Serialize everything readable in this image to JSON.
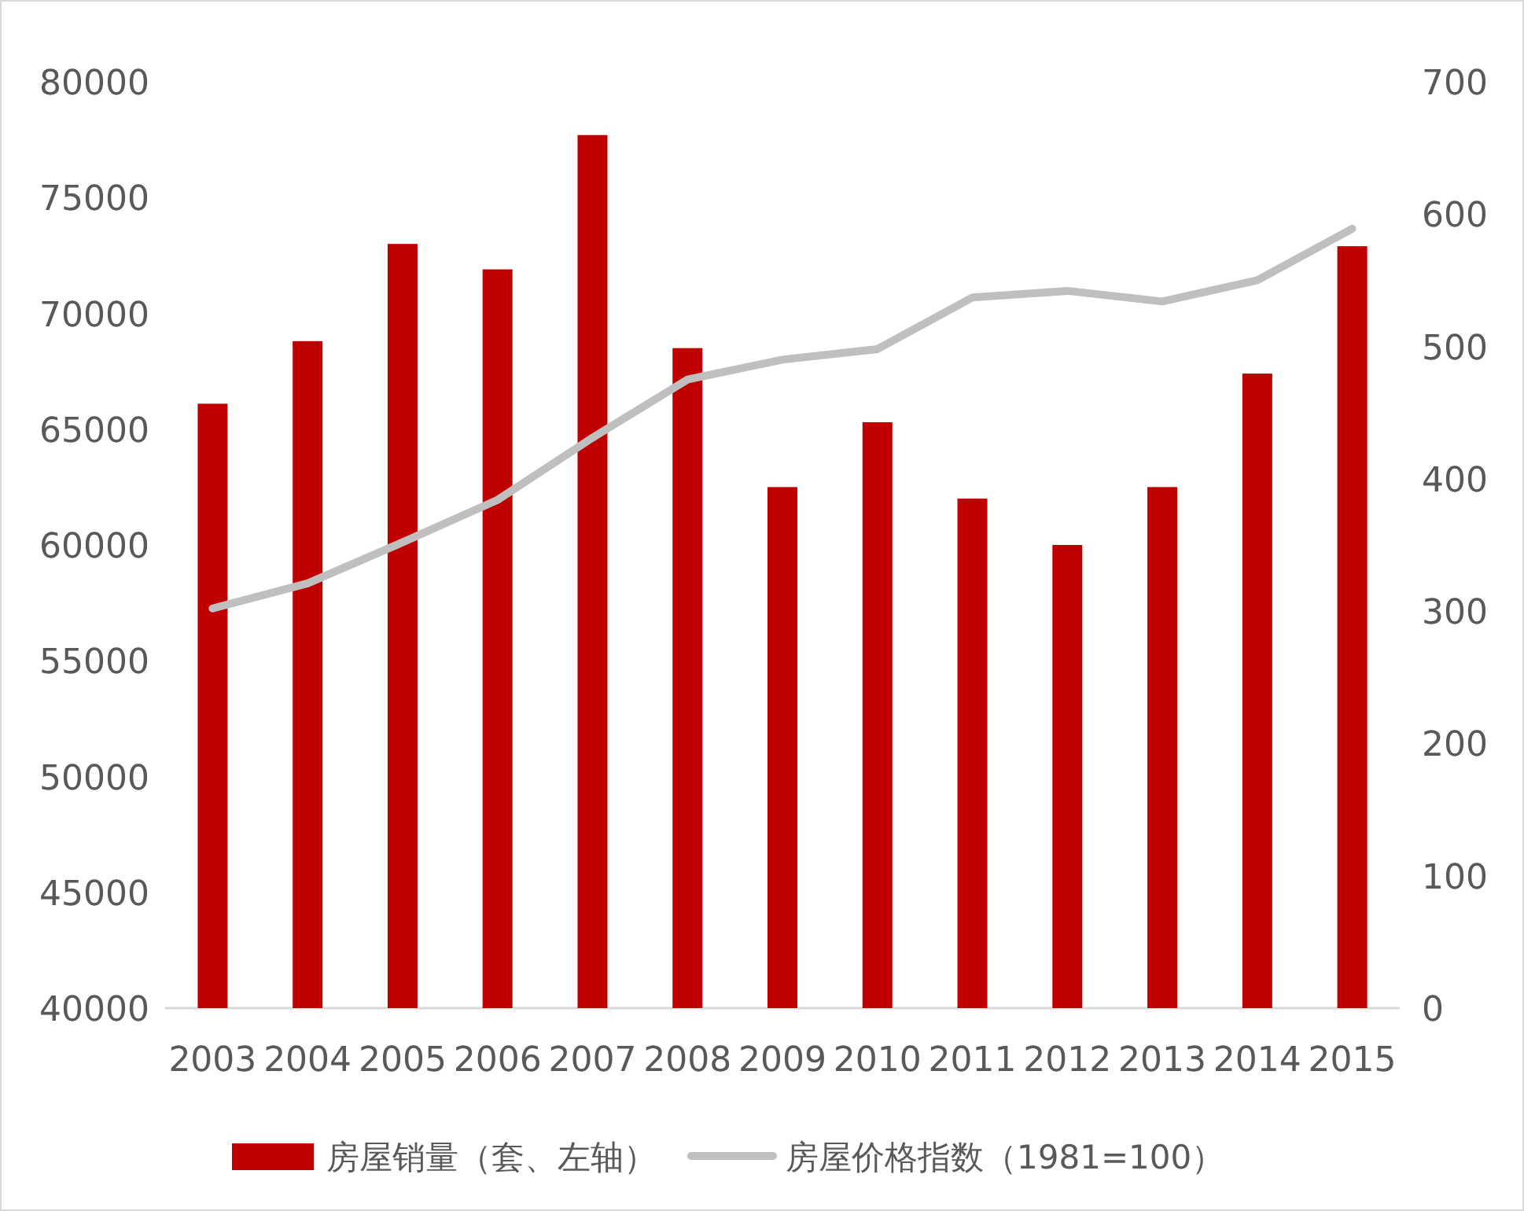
{
  "chart_data": {
    "type": "bar",
    "categories": [
      "2003",
      "2004",
      "2005",
      "2006",
      "2007",
      "2008",
      "2009",
      "2010",
      "2011",
      "2012",
      "2013",
      "2014",
      "2015"
    ],
    "series": [
      {
        "name": "房屋销量（套、左轴）",
        "color": "#c00000",
        "values": [
          66100,
          68800,
          73000,
          71900,
          77700,
          68500,
          62500,
          65300,
          62000,
          60000,
          62500,
          67400,
          72900
        ]
      },
      {
        "name": "房屋价格指数（1981=100）",
        "type": "line",
        "axis": "y2",
        "color": "#bfbfbf",
        "values": [
          302,
          321,
          352,
          384,
          431,
          475,
          490,
          498,
          537,
          542,
          534,
          550,
          589
        ]
      }
    ],
    "ylim": [
      40000,
      80000
    ],
    "yticks": [
      40000,
      45000,
      50000,
      55000,
      60000,
      65000,
      70000,
      75000,
      80000
    ],
    "y2lim": [
      0,
      700
    ],
    "y2ticks": [
      0,
      100,
      200,
      300,
      400,
      500,
      600,
      700
    ],
    "legend": "bottom"
  }
}
